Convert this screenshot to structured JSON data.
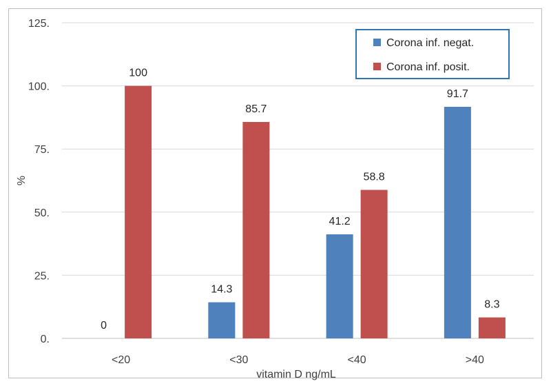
{
  "chart_data": {
    "type": "bar",
    "categories": [
      "<20",
      "<30",
      "<40",
      ">40"
    ],
    "series": [
      {
        "name": "Corona inf. negat.",
        "color": "#4f81bd",
        "values": [
          0,
          14.3,
          41.2,
          91.7
        ]
      },
      {
        "name": "Corona inf. posit.",
        "color": "#c0504d",
        "values": [
          100,
          85.7,
          58.8,
          8.3
        ]
      }
    ],
    "data_labels": [
      [
        "0",
        "14.3",
        "41.2",
        "91.7"
      ],
      [
        "100",
        "85.7",
        "58.8",
        "8.3"
      ]
    ],
    "xlabel": "vitamin D ng/mL",
    "ylabel": "%",
    "ylim": [
      0,
      125
    ],
    "yticks": [
      0,
      25,
      50,
      75,
      100,
      125
    ],
    "ytick_labels": [
      "0.",
      "25.",
      "50.",
      "75.",
      "100.",
      "125."
    ],
    "grid": true,
    "legend_position": "top-right",
    "legend_border_color": "#2e75b6"
  }
}
